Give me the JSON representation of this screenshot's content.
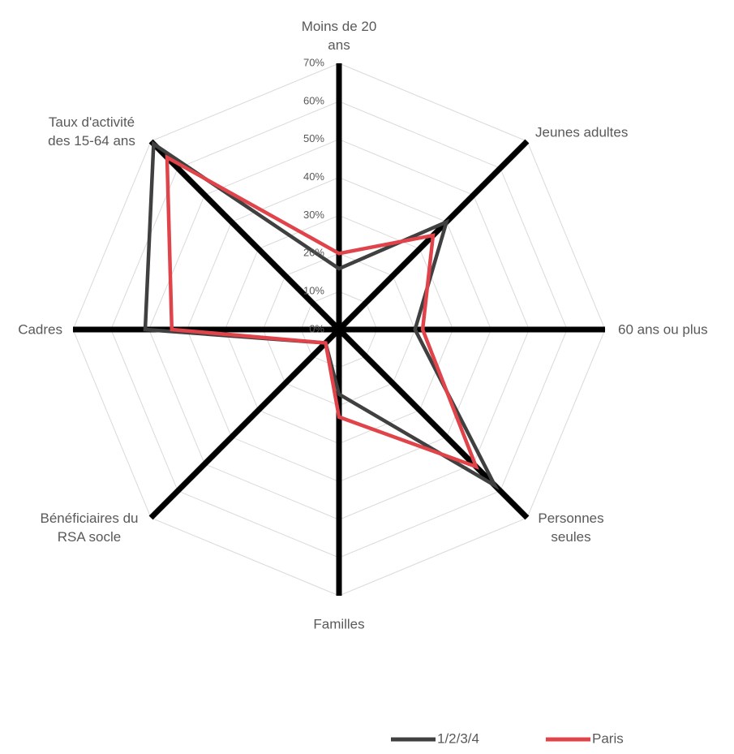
{
  "chart_data": {
    "type": "radar",
    "categories": [
      "Moins de 20 ans",
      "Jeunes adultes",
      "60 ans ou plus",
      "Personnes seules",
      "Familles",
      "Bénéficiaires du RSA socle",
      "Cadres",
      "Taux d'activité des 15-64 ans"
    ],
    "series": [
      {
        "name": "1/2/3/4",
        "color": "#404040",
        "values": [
          16,
          40,
          20,
          58,
          17,
          5,
          51,
          69
        ]
      },
      {
        "name": "Paris",
        "color": "#e0444a",
        "values": [
          20,
          35,
          22,
          51,
          23,
          5,
          44,
          64
        ]
      }
    ],
    "ylim": [
      0,
      70
    ],
    "yticks": [
      {
        "value": 0,
        "label": "0%"
      },
      {
        "value": 10,
        "label": "10%"
      },
      {
        "value": 20,
        "label": "20%"
      },
      {
        "value": 30,
        "label": "30%"
      },
      {
        "value": 40,
        "label": "40%"
      },
      {
        "value": 50,
        "label": "50%"
      },
      {
        "value": 60,
        "label": "60%"
      },
      {
        "value": 70,
        "label": "70%"
      }
    ],
    "grid": true,
    "legend": "bottom"
  }
}
